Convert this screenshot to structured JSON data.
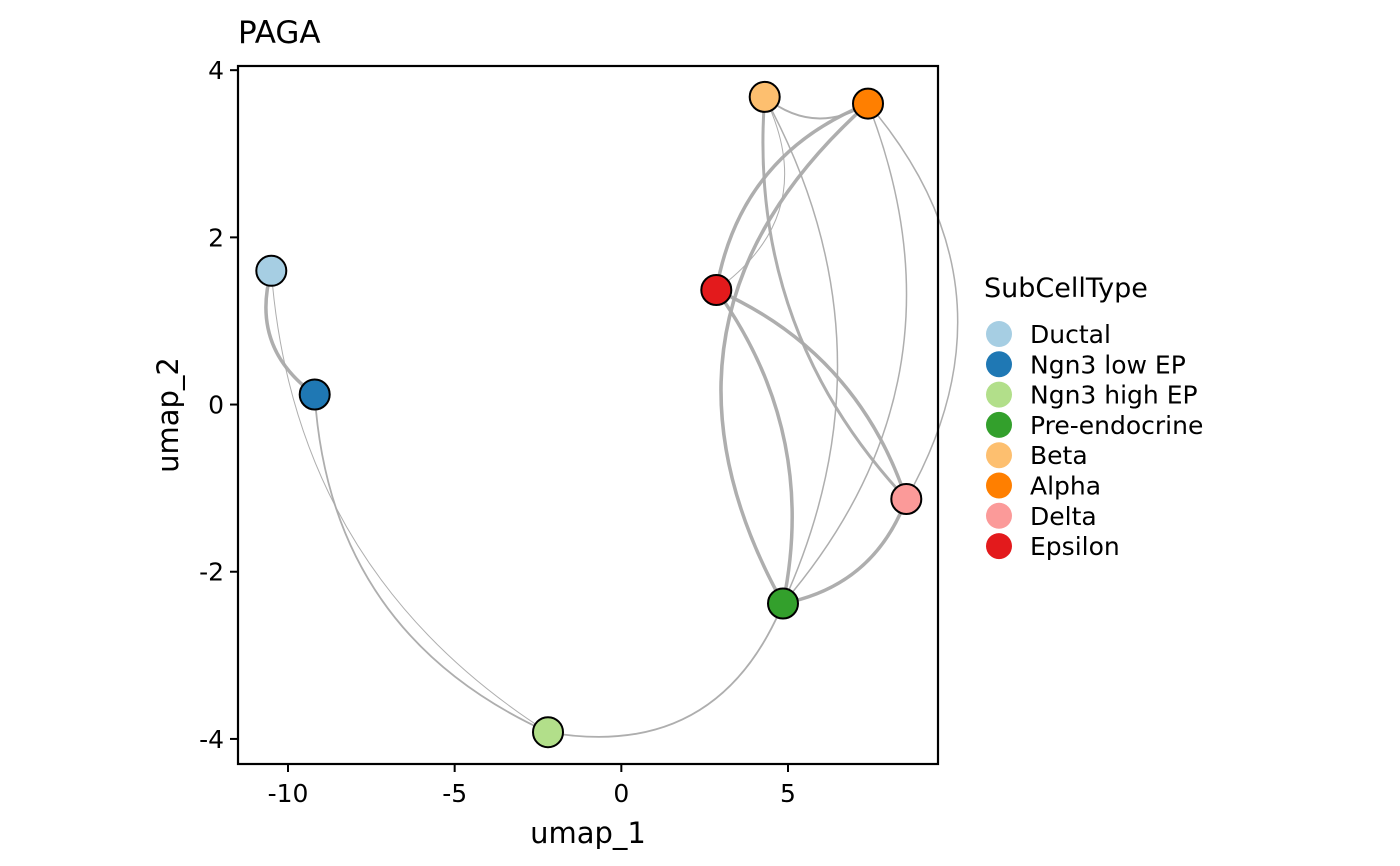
{
  "chart_data": {
    "type": "scatter",
    "title": "PAGA",
    "xlabel": "umap_1",
    "ylabel": "umap_2",
    "xlim": [
      -11.5,
      9.5
    ],
    "ylim": [
      -4.3,
      4.05
    ],
    "xticks": [
      -10,
      -5,
      0,
      5
    ],
    "yticks": [
      4,
      2,
      0,
      -2,
      -4
    ],
    "xtick_labels": [
      "-10",
      "-5",
      "0",
      "5"
    ],
    "ytick_labels": [
      "4",
      "2",
      "0",
      "-2",
      "-4"
    ],
    "grid": false,
    "legend": {
      "title": "SubCellType",
      "placement": "right",
      "entries": [
        {
          "name": "Ductal",
          "color": "#a6cee3"
        },
        {
          "name": "Ngn3 low EP",
          "color": "#1f78b4"
        },
        {
          "name": "Ngn3 high EP",
          "color": "#b2df8a"
        },
        {
          "name": "Pre-endocrine",
          "color": "#33a02c"
        },
        {
          "name": "Beta",
          "color": "#fdbf6f"
        },
        {
          "name": "Alpha",
          "color": "#ff7f00"
        },
        {
          "name": "Delta",
          "color": "#fb9a99"
        },
        {
          "name": "Epsilon",
          "color": "#e31a1c"
        }
      ]
    },
    "nodes": [
      {
        "name": "Ductal",
        "x": -10.5,
        "y": 1.6,
        "color": "#a6cee3"
      },
      {
        "name": "Ngn3 low EP",
        "x": -9.2,
        "y": 0.12,
        "color": "#1f78b4"
      },
      {
        "name": "Ngn3 high EP",
        "x": -2.2,
        "y": -3.92,
        "color": "#b2df8a"
      },
      {
        "name": "Pre-endocrine",
        "x": 4.85,
        "y": -2.38,
        "color": "#33a02c"
      },
      {
        "name": "Beta",
        "x": 4.3,
        "y": 3.68,
        "color": "#fdbf6f"
      },
      {
        "name": "Alpha",
        "x": 7.4,
        "y": 3.6,
        "color": "#ff7f00"
      },
      {
        "name": "Delta",
        "x": 8.55,
        "y": -1.13,
        "color": "#fb9a99"
      },
      {
        "name": "Epsilon",
        "x": 2.85,
        "y": 1.37,
        "color": "#e31a1c"
      }
    ],
    "edges": [
      {
        "from": "Ductal",
        "to": "Ngn3 low EP",
        "weight": 3.5,
        "bend": 0.35
      },
      {
        "from": "Ductal",
        "to": "Ngn3 high EP",
        "weight": 1,
        "bend": 0.25
      },
      {
        "from": "Ngn3 low EP",
        "to": "Ngn3 high EP",
        "weight": 1.8,
        "bend": 0.3
      },
      {
        "from": "Ngn3 high EP",
        "to": "Pre-endocrine",
        "weight": 1.8,
        "bend": 0.4
      },
      {
        "from": "Pre-endocrine",
        "to": "Epsilon",
        "weight": 3.5,
        "bend": 0.22
      },
      {
        "from": "Pre-endocrine",
        "to": "Beta",
        "weight": 1.5,
        "bend": 0.25
      },
      {
        "from": "Pre-endocrine",
        "to": "Alpha",
        "weight": 1.5,
        "bend": 0.3
      },
      {
        "from": "Pre-endocrine",
        "to": "Delta",
        "weight": 3.5,
        "bend": 0.28
      },
      {
        "from": "Epsilon",
        "to": "Beta",
        "weight": 1,
        "bend": 0.42
      },
      {
        "from": "Epsilon",
        "to": "Alpha",
        "weight": 3.5,
        "bend": -0.28
      },
      {
        "from": "Epsilon",
        "to": "Delta",
        "weight": 3.5,
        "bend": -0.22
      },
      {
        "from": "Beta",
        "to": "Alpha",
        "weight": 2,
        "bend": 0.35
      },
      {
        "from": "Beta",
        "to": "Delta",
        "weight": 3,
        "bend": 0.22
      },
      {
        "from": "Alpha",
        "to": "Delta",
        "weight": 1.5,
        "bend": -0.35
      },
      {
        "from": "Alpha",
        "to": "Pre-endocrine",
        "weight": 3.5,
        "bend": 0.4
      }
    ]
  }
}
